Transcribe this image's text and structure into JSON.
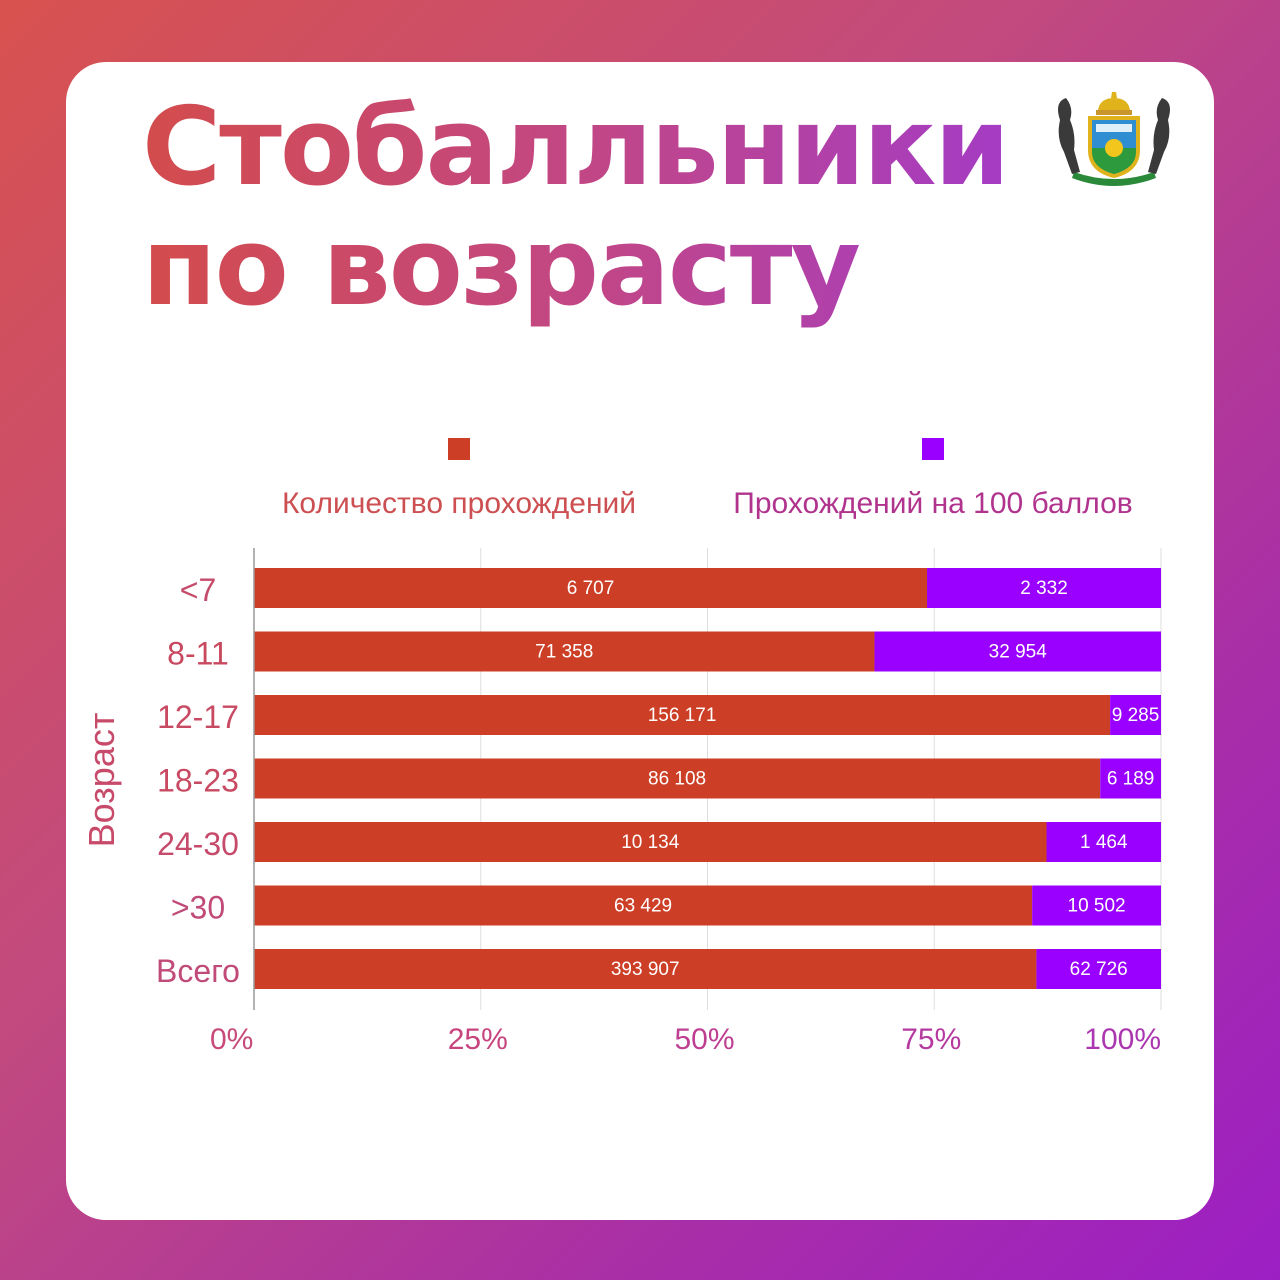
{
  "title_lines": [
    "Стобалльники",
    "по возрасту"
  ],
  "colors": {
    "attempts": "#cc3f26",
    "hundred": "#9900ff",
    "axis_text": "#c0447a",
    "grid": "#dddddd"
  },
  "chart_data": {
    "type": "bar",
    "orientation": "horizontal",
    "stacked": "percent",
    "ylabel": "Возраст",
    "categories": [
      "<7",
      "8-11",
      "12-17",
      "18-23",
      "24-30",
      ">30",
      "Всего"
    ],
    "series": [
      {
        "name": "Количество прохождений",
        "values": [
          6707,
          71358,
          156171,
          86108,
          10134,
          63429,
          393907
        ],
        "labels": [
          "6 707",
          "71 358",
          "156 171",
          "86 108",
          "10 134",
          "63 429",
          "393 907"
        ]
      },
      {
        "name": "Прохождений на 100 баллов",
        "values": [
          2332,
          32954,
          9285,
          6189,
          1464,
          10502,
          62726
        ],
        "labels": [
          "2 332",
          "32 954",
          "9 285",
          "6 189",
          "1 464",
          "10 502",
          "62 726"
        ]
      }
    ],
    "x_ticks": [
      "0%",
      "25%",
      "50%",
      "75%",
      "100%"
    ],
    "xlim": [
      0,
      100
    ],
    "grid": true,
    "legend_position": "top"
  }
}
